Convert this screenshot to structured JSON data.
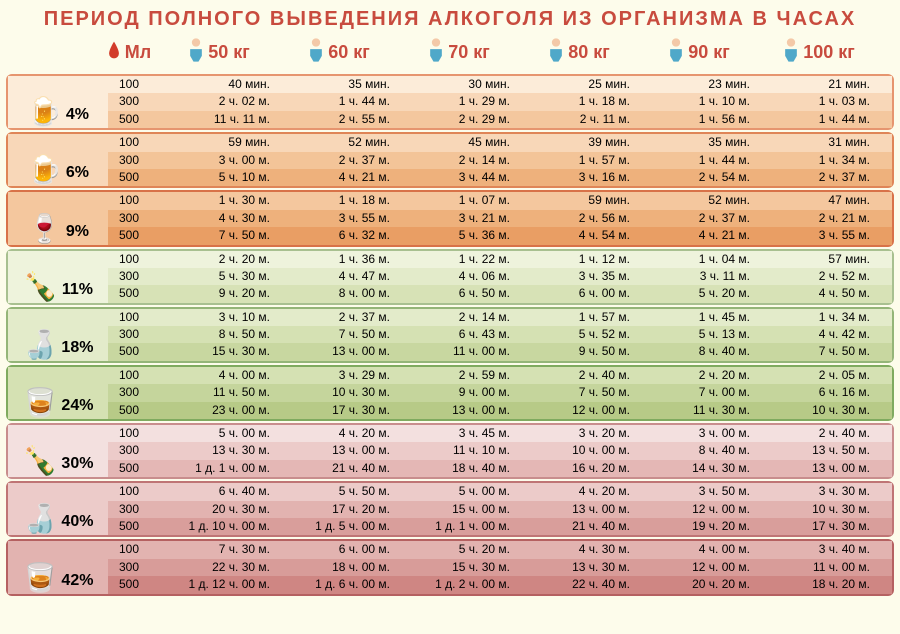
{
  "title": "Период полного выведения алкоголя из организма в часах",
  "title_color": "#c84b3e",
  "header": {
    "ml_label": "Мл",
    "ml_color": "#c84b3e",
    "weights": [
      {
        "label": "50 кг",
        "color": "#c84b3e"
      },
      {
        "label": "60 кг",
        "color": "#c84b3e"
      },
      {
        "label": "70 кг",
        "color": "#c84b3e"
      },
      {
        "label": "80 кг",
        "color": "#c84b3e"
      },
      {
        "label": "90 кг",
        "color": "#c84b3e"
      },
      {
        "label": "100 кг",
        "color": "#c84b3e"
      }
    ]
  },
  "groups": [
    {
      "percent": "4%",
      "icon": "🍺",
      "border_color": "#e6956f",
      "row_colors": [
        "#fcecd9",
        "#f8d7b8",
        "#f4c79e"
      ],
      "ml": [
        "100",
        "300",
        "500"
      ],
      "data": [
        [
          "40 мин.",
          "35 мин.",
          "30 мин.",
          "25 мин.",
          "23 мин.",
          "21 мин."
        ],
        [
          "2 ч. 02 м.",
          "1 ч. 44 м.",
          "1 ч. 29 м.",
          "1 ч. 18 м.",
          "1 ч. 10 м.",
          "1 ч. 03 м."
        ],
        [
          "11 ч. 11 м.",
          "2 ч. 55 м.",
          "2 ч. 29 м.",
          "2 ч. 11 м.",
          "1 ч. 56 м.",
          "1 ч. 44 м."
        ]
      ]
    },
    {
      "percent": "6%",
      "icon": "🍺",
      "border_color": "#df8557",
      "row_colors": [
        "#f8d7b8",
        "#f3c498",
        "#eeb17c"
      ],
      "ml": [
        "100",
        "300",
        "500"
      ],
      "data": [
        [
          "59 мин.",
          "52 мин.",
          "45 мин.",
          "39 мин.",
          "35 мин.",
          "31 мин."
        ],
        [
          "3 ч. 00 м.",
          "2 ч. 37 м.",
          "2 ч. 14 м.",
          "1 ч. 57 м.",
          "1 ч. 44 м.",
          "1 ч. 34 м."
        ],
        [
          "5 ч. 10 м.",
          "4 ч. 21 м.",
          "3 ч. 44 м.",
          "3 ч. 16 м.",
          "2 ч. 54 м.",
          "2 ч. 37 м."
        ]
      ]
    },
    {
      "percent": "9%",
      "icon": "🍷",
      "border_color": "#d87248",
      "row_colors": [
        "#f4c79e",
        "#eeb17c",
        "#e99e64"
      ],
      "ml": [
        "100",
        "300",
        "500"
      ],
      "data": [
        [
          "1 ч. 30 м.",
          "1 ч. 18 м.",
          "1 ч. 07 м.",
          "59 мин.",
          "52 мин.",
          "47 мин."
        ],
        [
          "4 ч. 30 м.",
          "3 ч. 55 м.",
          "3 ч. 21 м.",
          "2 ч. 56 м.",
          "2 ч. 37 м.",
          "2 ч. 21 м."
        ],
        [
          "7 ч. 50 м.",
          "6 ч. 32 м.",
          "5 ч. 36 м.",
          "4 ч. 54 м.",
          "4 ч. 21 м.",
          "3 ч. 55 м."
        ]
      ]
    },
    {
      "percent": "11%",
      "icon": "🍾",
      "border_color": "#a8c090",
      "row_colors": [
        "#eef3dc",
        "#e3ebca",
        "#d7e2b6"
      ],
      "ml": [
        "100",
        "300",
        "500"
      ],
      "data": [
        [
          "2 ч. 20 м.",
          "1 ч. 36 м.",
          "1 ч. 22 м.",
          "1 ч. 12 м.",
          "1 ч. 04 м.",
          "57 мин."
        ],
        [
          "5 ч. 30 м.",
          "4 ч. 47 м.",
          "4 ч. 06 м.",
          "3 ч. 35 м.",
          "3 ч. 11 м.",
          "2 ч. 52 м."
        ],
        [
          "9 ч. 20 м.",
          "8 ч. 00 м.",
          "6 ч. 50 м.",
          "6 ч. 00 м.",
          "5 ч. 20 м.",
          "4 ч. 50 м."
        ]
      ]
    },
    {
      "percent": "18%",
      "icon": "🍶",
      "border_color": "#94b578",
      "row_colors": [
        "#e3ebca",
        "#d5e1b3",
        "#c8d7a0"
      ],
      "ml": [
        "100",
        "300",
        "500"
      ],
      "data": [
        [
          "3 ч. 10 м.",
          "2 ч. 37 м.",
          "2 ч. 14 м.",
          "1 ч. 57 м.",
          "1 ч. 45 м.",
          "1 ч. 34 м."
        ],
        [
          "8 ч. 50 м.",
          "7 ч. 50 м.",
          "6 ч. 43 м.",
          "5 ч. 52 м.",
          "5 ч. 13 м.",
          "4 ч. 42 м."
        ],
        [
          "15 ч. 30 м.",
          "13 ч. 00 м.",
          "11 ч. 00 м.",
          "9 ч. 50 м.",
          "8 ч. 40 м.",
          "7 ч. 50 м."
        ]
      ]
    },
    {
      "percent": "24%",
      "icon": "🥃",
      "border_color": "#7faa5f",
      "row_colors": [
        "#d5e1b3",
        "#c5d59c",
        "#b7ca87"
      ],
      "ml": [
        "100",
        "300",
        "500"
      ],
      "data": [
        [
          "4 ч. 00 м.",
          "3 ч. 29 м.",
          "2 ч. 59 м.",
          "2 ч. 40 м.",
          "2 ч. 20 м.",
          "2 ч. 05 м."
        ],
        [
          "11 ч. 50 м.",
          "10 ч. 30 м.",
          "9 ч. 00 м.",
          "7 ч. 50 м.",
          "7 ч. 00 м.",
          "6 ч. 16 м."
        ],
        [
          "23 ч. 00 м.",
          "17 ч. 30 м.",
          "13 ч. 00 м.",
          "12 ч. 00 м.",
          "11 ч. 30 м.",
          "10 ч. 30 м."
        ]
      ]
    },
    {
      "percent": "30%",
      "icon": "🍾",
      "border_color": "#c88d8d",
      "row_colors": [
        "#f3e0df",
        "#eccbc9",
        "#e4b7b5"
      ],
      "ml": [
        "100",
        "300",
        "500"
      ],
      "data": [
        [
          "5 ч. 00 м.",
          "4 ч. 20 м.",
          "3 ч. 45 м.",
          "3 ч. 20 м.",
          "3 ч. 00 м.",
          "2 ч. 40 м."
        ],
        [
          "13 ч. 30 м.",
          "13 ч. 00 м.",
          "11 ч. 10 м.",
          "10 ч. 00 м.",
          "8 ч. 40 м.",
          "13 ч. 50 м."
        ],
        [
          "1 д. 1 ч. 00 м.",
          "21 ч. 40 м.",
          "18 ч. 40 м.",
          "16 ч. 20 м.",
          "14 ч. 30 м.",
          "13 ч. 00 м."
        ]
      ]
    },
    {
      "percent": "40%",
      "icon": "🍶",
      "border_color": "#bf7575",
      "row_colors": [
        "#eccbc9",
        "#e2b3b0",
        "#d99e9b"
      ],
      "ml": [
        "100",
        "300",
        "500"
      ],
      "data": [
        [
          "6 ч. 40 м.",
          "5 ч. 50 м.",
          "5 ч. 00 м.",
          "4 ч. 20 м.",
          "3 ч. 50 м.",
          "3 ч. 30 м."
        ],
        [
          "20 ч. 30 м.",
          "17 ч. 20 м.",
          "15 ч. 00 м.",
          "13 ч. 00 м.",
          "12 ч. 00 м.",
          "10 ч. 30 м."
        ],
        [
          "1 д. 10 ч. 00 м.",
          "1 д. 5 ч. 00 м.",
          "1 д. 1 ч. 00 м.",
          "21 ч. 40 м.",
          "19 ч. 20 м.",
          "17 ч. 30 м."
        ]
      ]
    },
    {
      "percent": "42%",
      "icon": "🥃",
      "border_color": "#b56161",
      "row_colors": [
        "#e2b3b0",
        "#d89c99",
        "#cf8683"
      ],
      "ml": [
        "100",
        "300",
        "500"
      ],
      "data": [
        [
          "7 ч. 30 м.",
          "6 ч. 00 м.",
          "5 ч. 20 м.",
          "4 ч. 30 м.",
          "4 ч. 00 м.",
          "3 ч. 40 м."
        ],
        [
          "22 ч. 30 м.",
          "18 ч. 00 м.",
          "15 ч. 30 м.",
          "13 ч. 30 м.",
          "12 ч. 00 м.",
          "11 ч. 00 м."
        ],
        [
          "1 д. 12 ч. 00 м.",
          "1 д. 6 ч. 00 м.",
          "1 д. 2 ч. 00 м.",
          "22 ч. 40 м.",
          "20 ч. 20 м.",
          "18 ч. 20 м."
        ]
      ]
    }
  ]
}
